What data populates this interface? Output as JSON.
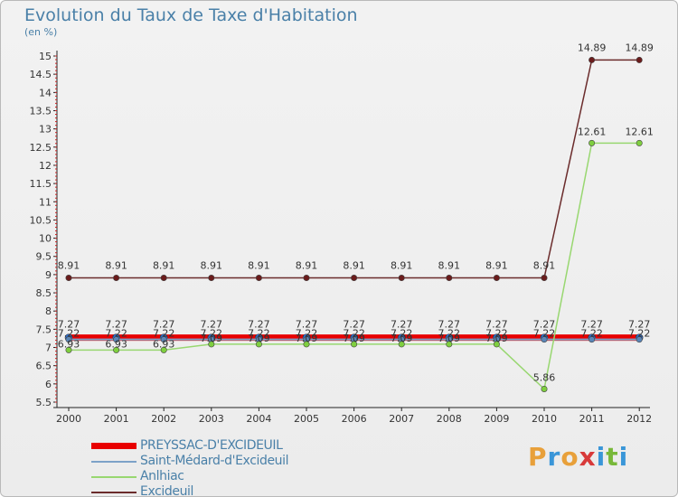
{
  "title": "Evolution du Taux de Taxe d'Habitation",
  "unit": "(en %)",
  "brand": {
    "letters": [
      "P",
      "r",
      "o",
      "x",
      "i",
      "t",
      "i"
    ],
    "colors": [
      "#e8a03a",
      "#3a96d8",
      "#e8a03a",
      "#d83a3a",
      "#3a96d8",
      "#78b83a",
      "#3a96d8"
    ]
  },
  "chart_data": {
    "type": "line",
    "title": "Evolution du Taux de Taxe d'Habitation",
    "ylabel": "(en %)",
    "xlabel": "",
    "categories": [
      "2000",
      "2001",
      "2002",
      "2003",
      "2004",
      "2005",
      "2006",
      "2007",
      "2008",
      "2009",
      "2010",
      "2011",
      "2012"
    ],
    "ylim": [
      5.5,
      15
    ],
    "yticks": [
      "5.5",
      "6",
      "6.5",
      "7",
      "7.5",
      "8",
      "8.5",
      "9",
      "9.5",
      "10",
      "10.5",
      "11",
      "11.5",
      "12",
      "12.5",
      "13",
      "13.5",
      "14",
      "14.5",
      "15"
    ],
    "grid": false,
    "legend_position": "bottom-left",
    "series": [
      {
        "name": "PREYSSAC-D'EXCIDEUIL",
        "color": "#e80000",
        "values": [
          7.27,
          7.27,
          7.27,
          7.27,
          7.27,
          7.27,
          7.27,
          7.27,
          7.27,
          7.27,
          7.27,
          7.27,
          7.27
        ],
        "labels": [
          "7.27",
          "7.27",
          "7.27",
          "7.27",
          "7.27",
          "7.27",
          "7.27",
          "7.27",
          "7.27",
          "7.27",
          "7.27",
          "7.27",
          "7.27"
        ]
      },
      {
        "name": "Saint-Médard-d'Excideuil",
        "color": "#7da2c8",
        "values": [
          7.22,
          7.22,
          7.22,
          7.22,
          7.22,
          7.22,
          7.22,
          7.22,
          7.22,
          7.22,
          7.22,
          7.22,
          7.22
        ],
        "labels": [
          "7.22",
          "7.22",
          "7.22",
          "7.22",
          "7.22",
          "7.22",
          "7.22",
          "7.22",
          "7.22",
          "7.22",
          "7.22",
          "7.22",
          "7.22"
        ]
      },
      {
        "name": "Anlhiac",
        "color": "#98d770",
        "values": [
          6.93,
          6.93,
          6.93,
          7.09,
          7.09,
          7.09,
          7.09,
          7.09,
          7.09,
          7.09,
          5.86,
          12.61,
          12.61
        ],
        "labels": [
          "6.93",
          "6.93",
          "6.93",
          "7.09",
          "7.09",
          "7.09",
          "7.09",
          "7.09",
          "7.09",
          "7.09",
          "5.86",
          "12.61",
          "12.61"
        ]
      },
      {
        "name": "Excideuil",
        "color": "#6b2c2c",
        "values": [
          8.91,
          8.91,
          8.91,
          8.91,
          8.91,
          8.91,
          8.91,
          8.91,
          8.91,
          8.91,
          8.91,
          14.89,
          14.89
        ],
        "labels": [
          "8.91",
          "8.91",
          "8.91",
          "8.91",
          "8.91",
          "8.91",
          "8.91",
          "8.91",
          "8.91",
          "8.91",
          "8.91",
          "14.89",
          "14.89"
        ]
      }
    ]
  }
}
